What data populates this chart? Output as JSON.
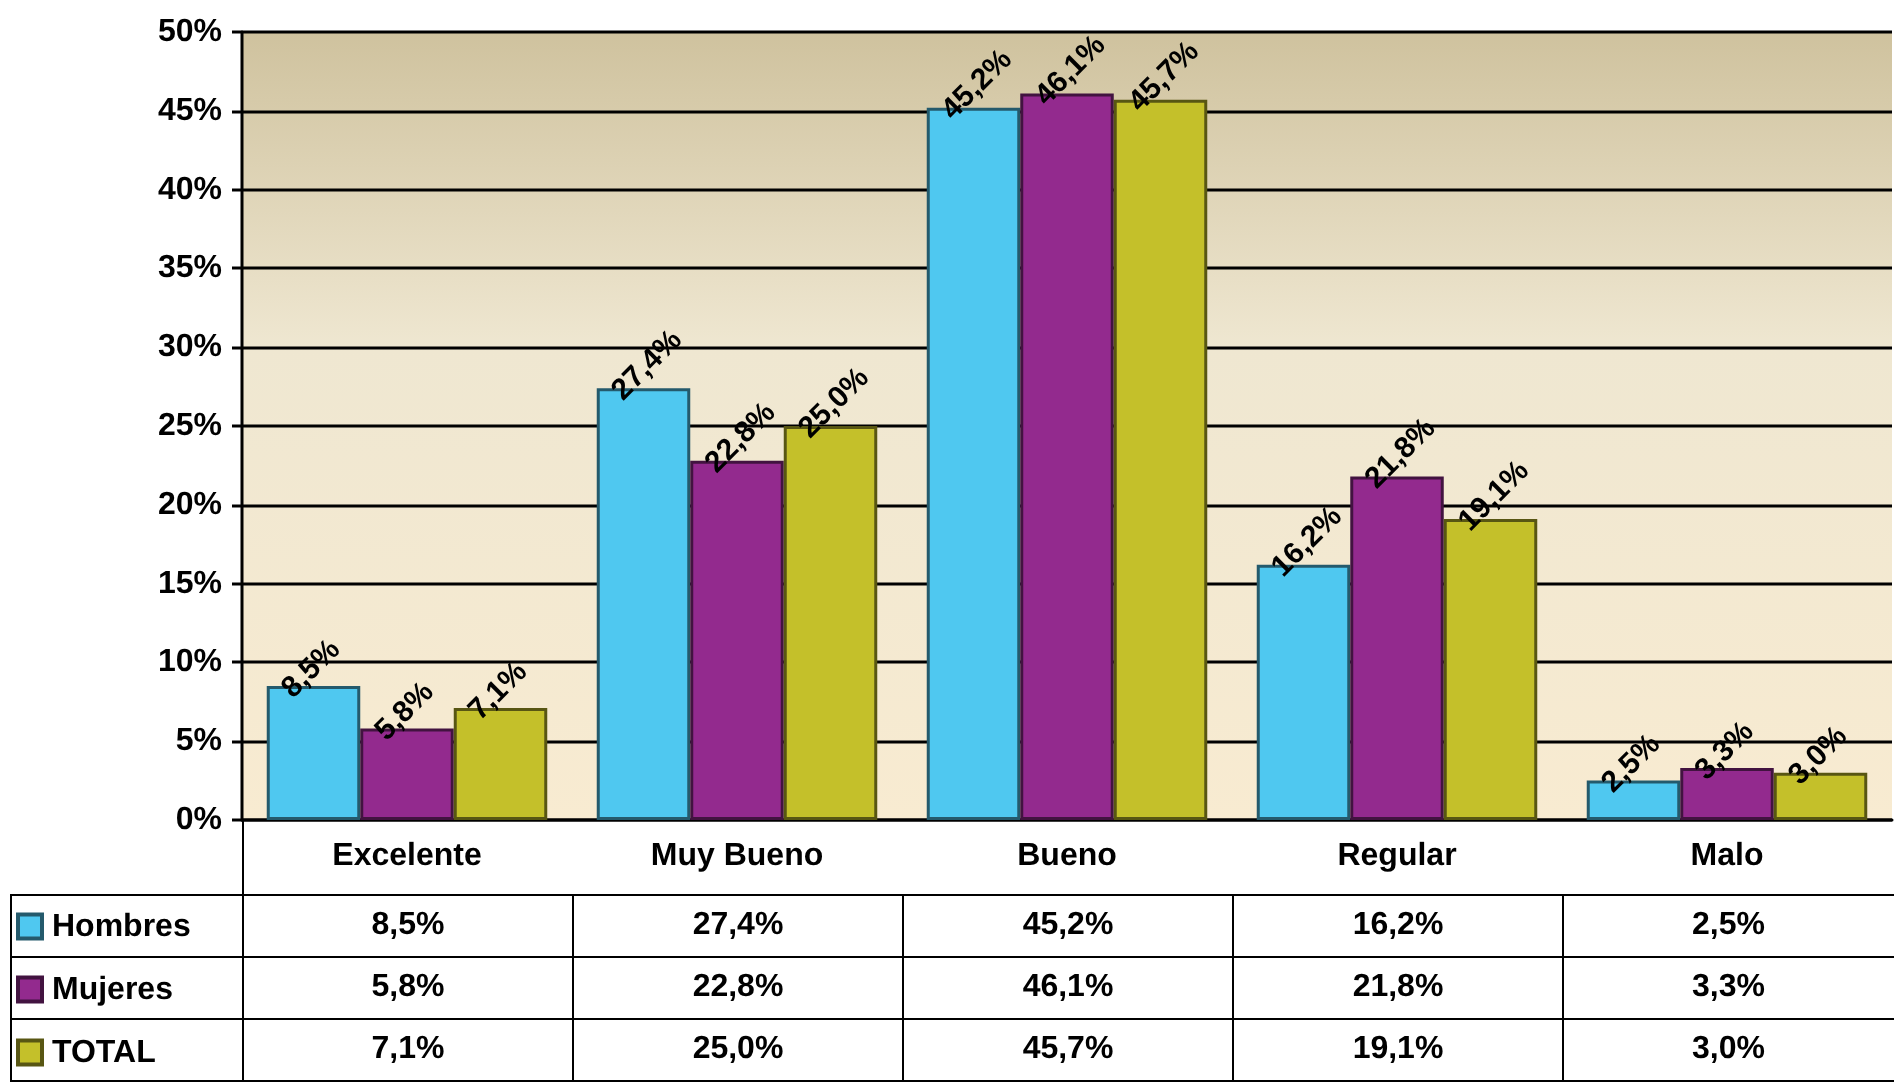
{
  "chart_data": {
    "type": "bar",
    "categories": [
      "Excelente",
      "Muy Bueno",
      "Bueno",
      "Regular",
      "Malo"
    ],
    "series": [
      {
        "name": "Hombres",
        "color": "#4fc8f0",
        "values": [
          8.5,
          27.4,
          45.2,
          16.2,
          2.5
        ],
        "value_labels": [
          "8,5%",
          "27,4%",
          "45,2%",
          "16,2%",
          "2,5%"
        ]
      },
      {
        "name": "Mujeres",
        "color": "#932a8e",
        "values": [
          5.8,
          22.8,
          46.1,
          21.8,
          3.3
        ],
        "value_labels": [
          "5,8%",
          "22,8%",
          "46,1%",
          "21,8%",
          "3,3%"
        ]
      },
      {
        "name": "TOTAL",
        "color": "#c4c02a",
        "values": [
          7.1,
          25.0,
          45.7,
          19.1,
          3.0
        ],
        "value_labels": [
          "7,1%",
          "25,0%",
          "45,7%",
          "19,1%",
          "3,0%"
        ]
      }
    ],
    "ylim": [
      0,
      50
    ],
    "yticks": [
      {
        "value": 0,
        "label": "0%"
      },
      {
        "value": 5,
        "label": "5%"
      },
      {
        "value": 10,
        "label": "10%"
      },
      {
        "value": 15,
        "label": "15%"
      },
      {
        "value": 20,
        "label": "20%"
      },
      {
        "value": 25,
        "label": "25%"
      },
      {
        "value": 30,
        "label": "30%"
      },
      {
        "value": 35,
        "label": "35%"
      },
      {
        "value": 40,
        "label": "40%"
      },
      {
        "value": 45,
        "label": "45%"
      },
      {
        "value": 50,
        "label": "50%"
      }
    ],
    "grid": "y",
    "legend": "bottom"
  }
}
